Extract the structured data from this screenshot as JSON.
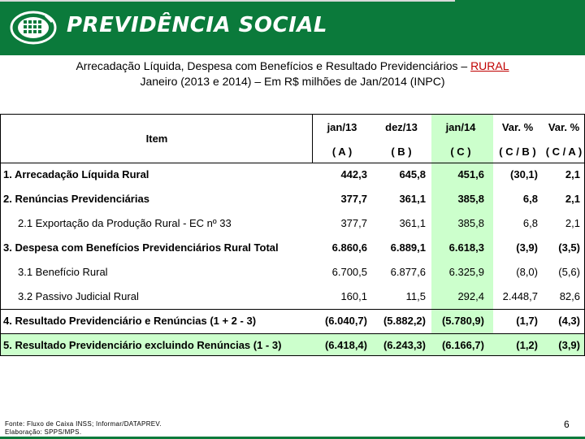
{
  "header": {
    "brand": "PREVIDÊNCIA SOCIAL",
    "logo_icon": "previdencia-logo-icon",
    "colors": {
      "green": "#0b7a3b",
      "highlight": "#ccffcc",
      "accent_red": "#c00000"
    }
  },
  "title": {
    "line1_prefix": "Arrecadação Líquida, Despesa com Benefícios e Resultado Previdenciários – ",
    "line1_highlight": "RURAL",
    "line2": "Janeiro (2013 e 2014) – Em R$ milhões de Jan/2014 (INPC)"
  },
  "table": {
    "item_header": "Item",
    "columns": [
      {
        "label": "jan/13",
        "sub": "( A )"
      },
      {
        "label": "dez/13",
        "sub": "( B )"
      },
      {
        "label": "jan/14",
        "sub": "( C )"
      },
      {
        "label": "Var. %",
        "sub": "( C / B )"
      },
      {
        "label": "Var. %",
        "sub": "( C / A )"
      }
    ],
    "rows": [
      {
        "item": "1. Arrecadação Líquida Rural",
        "values": [
          "442,3",
          "645,8",
          "451,6",
          "(30,1)",
          "2,1"
        ]
      },
      {
        "item": "2. Renúncias Previdenciárias",
        "values": [
          "377,7",
          "361,1",
          "385,8",
          "6,8",
          "2,1"
        ]
      },
      {
        "item": "2.1 Exportação da Produção Rural - EC nº 33",
        "values": [
          "377,7",
          "361,1",
          "385,8",
          "6,8",
          "2,1"
        ]
      },
      {
        "item": "3. Despesa com Benefícios Previdenciários Rural Total",
        "values": [
          "6.860,6",
          "6.889,1",
          "6.618,3",
          "(3,9)",
          "(3,5)"
        ]
      },
      {
        "item": "3.1 Benefício Rural",
        "values": [
          "6.700,5",
          "6.877,6",
          "6.325,9",
          "(8,0)",
          "(5,6)"
        ]
      },
      {
        "item": "3.2 Passivo Judicial Rural",
        "values": [
          "160,1",
          "11,5",
          "292,4",
          "2.448,7",
          "82,6"
        ]
      },
      {
        "item": "4. Resultado Previdenciário e Renúncias (1 + 2 - 3)",
        "values": [
          "(6.040,7)",
          "(5.882,2)",
          "(5.780,9)",
          "(1,7)",
          "(4,3)"
        ]
      },
      {
        "item": "5. Resultado Previdenciário excluindo Renúncias (1 - 3)",
        "values": [
          "(6.418,4)",
          "(6.243,3)",
          "(6.166,7)",
          "(1,2)",
          "(3,9)"
        ]
      }
    ]
  },
  "footer": {
    "source": "Fonte: Fluxo de Caixa INSS; Informar/DATAPREV.",
    "prepared": "Elaboração: SPPS/MPS.",
    "page_number": "6"
  }
}
